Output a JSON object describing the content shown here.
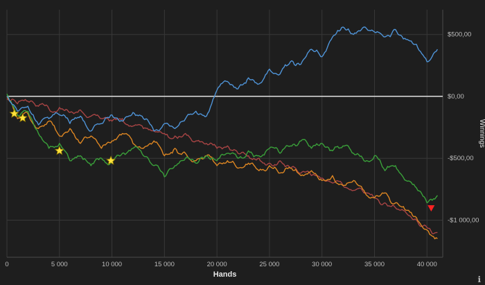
{
  "chart_data": {
    "type": "line",
    "title": "",
    "xlabel": "Hands",
    "ylabel": "Winnings",
    "grid": true,
    "legend": "none",
    "xlim": [
      0,
      41500
    ],
    "ylim": [
      -1300,
      700
    ],
    "x_ticks": {
      "values": [
        0,
        5000,
        10000,
        15000,
        20000,
        25000,
        30000,
        35000,
        40000
      ],
      "labels": [
        "0",
        "5 000",
        "10 000",
        "15 000",
        "20 000",
        "25 000",
        "30 000",
        "35 000",
        "40 000"
      ]
    },
    "y_ticks": {
      "values": [
        500,
        0,
        -500,
        -1000
      ],
      "labels": [
        "$500,00",
        "$0,00",
        "-$500,00",
        "-$1 000,00"
      ]
    },
    "x": [
      0,
      1000,
      2000,
      3000,
      4000,
      5000,
      6000,
      7000,
      8000,
      9000,
      10000,
      11000,
      12000,
      13000,
      14000,
      15000,
      16000,
      17000,
      18000,
      19000,
      20000,
      21000,
      22000,
      23000,
      24000,
      25000,
      26000,
      27000,
      28000,
      29000,
      30000,
      31000,
      32000,
      33000,
      34000,
      35000,
      36000,
      37000,
      38000,
      39000,
      40000,
      41000
    ],
    "series": [
      {
        "name": "red",
        "color": "#a84444",
        "values": [
          -20,
          -60,
          -40,
          -80,
          -100,
          -90,
          -130,
          -110,
          -160,
          -180,
          -200,
          -180,
          -240,
          -260,
          -280,
          -300,
          -320,
          -300,
          -360,
          -380,
          -420,
          -400,
          -460,
          -480,
          -500,
          -540,
          -520,
          -580,
          -620,
          -640,
          -660,
          -700,
          -720,
          -760,
          -780,
          -820,
          -860,
          -900,
          -940,
          -1000,
          -1060,
          -1100
        ]
      },
      {
        "name": "orange",
        "color": "#dd8622",
        "values": [
          0,
          -180,
          -140,
          -260,
          -200,
          -320,
          -260,
          -380,
          -320,
          -420,
          -360,
          -300,
          -380,
          -420,
          -360,
          -480,
          -420,
          -460,
          -520,
          -480,
          -560,
          -520,
          -580,
          -540,
          -600,
          -560,
          -620,
          -580,
          -640,
          -600,
          -680,
          -640,
          -720,
          -680,
          -760,
          -820,
          -780,
          -860,
          -920,
          -980,
          -1080,
          -1150
        ]
      },
      {
        "name": "green",
        "color": "#3aa13a",
        "values": [
          20,
          -150,
          -120,
          -300,
          -420,
          -380,
          -520,
          -480,
          -560,
          -500,
          -540,
          -460,
          -420,
          -480,
          -560,
          -650,
          -560,
          -500,
          -540,
          -480,
          -520,
          -460,
          -500,
          -440,
          -480,
          -420,
          -460,
          -400,
          -360,
          -420,
          -380,
          -440,
          -400,
          -460,
          -520,
          -480,
          -600,
          -560,
          -680,
          -740,
          -860,
          -800
        ]
      },
      {
        "name": "blue",
        "color": "#4f94d8",
        "values": [
          0,
          -120,
          -80,
          -230,
          -180,
          -150,
          -220,
          -160,
          -280,
          -220,
          -150,
          -200,
          -130,
          -180,
          -280,
          -220,
          -260,
          -180,
          -120,
          -160,
          50,
          120,
          60,
          150,
          100,
          220,
          180,
          280,
          260,
          380,
          320,
          480,
          560,
          500,
          560,
          520,
          480,
          540,
          460,
          420,
          280,
          380
        ]
      }
    ],
    "markers": {
      "stars": {
        "color": "#ffe23c",
        "outline": "#8a7400",
        "points": [
          {
            "x": 700,
            "y": -140
          },
          {
            "x": 1500,
            "y": -175
          },
          {
            "x": 5000,
            "y": -440
          },
          {
            "x": 9900,
            "y": -520
          }
        ]
      },
      "arrow": {
        "color": "#ff2222",
        "point": {
          "x": 40400,
          "y": -930
        }
      }
    },
    "zero_line": 0
  },
  "style_colors": {
    "background": "#1e1e1e",
    "grid": "#383838",
    "axis_line": "#4a4a4a",
    "zero_line": "#d4d4d4",
    "tick_text": "#bdbdbd",
    "axis_label_text": "#e6e6e6"
  },
  "footer": {
    "info_icon": "ℹ"
  }
}
